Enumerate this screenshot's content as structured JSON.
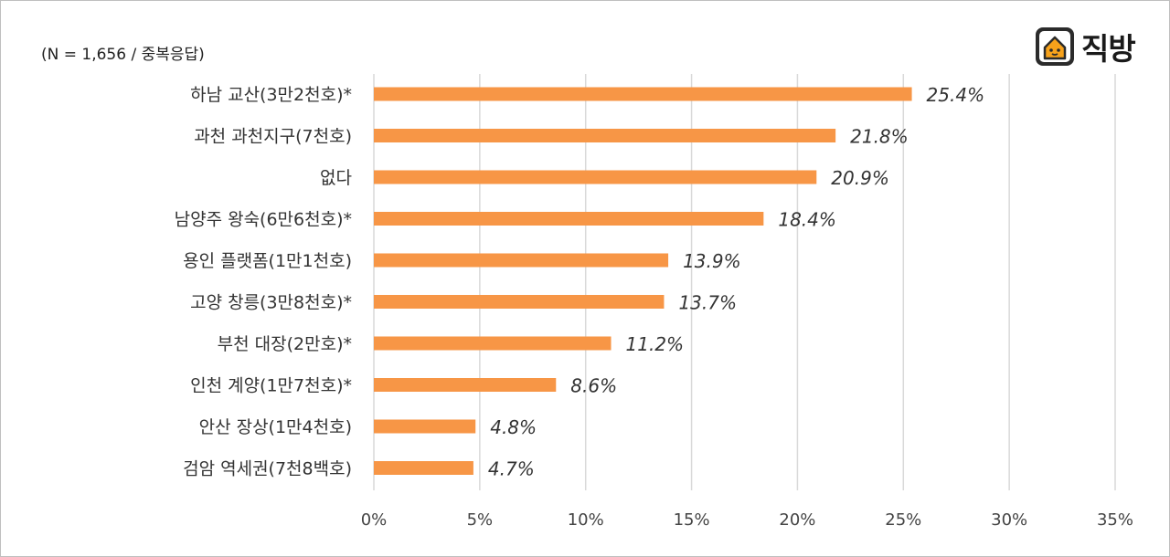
{
  "note": "(N = 1,656 / 중복응답)",
  "logo": {
    "text": "직방",
    "icon": "house-logo-icon"
  },
  "chart_data": {
    "type": "bar",
    "orientation": "horizontal",
    "title": "",
    "xlabel": "",
    "ylabel": "",
    "categories": [
      "하남 교산(3만2천호)*",
      "과천 과천지구(7천호)",
      "없다",
      "남양주 왕숙(6만6천호)*",
      "용인 플랫폼(1만1천호)",
      "고양 창릉(3만8천호)*",
      "부천 대장(2만호)*",
      "인천 계양(1만7천호)*",
      "안산 장상(1만4천호)",
      "검암 역세권(7천8백호)"
    ],
    "values": [
      25.4,
      21.8,
      20.9,
      18.4,
      13.9,
      13.7,
      11.2,
      8.6,
      4.8,
      4.7
    ],
    "value_labels": [
      "25.4%",
      "21.8%",
      "20.9%",
      "18.4%",
      "13.9%",
      "13.7%",
      "11.2%",
      "8.6%",
      "4.8%",
      "4.7%"
    ],
    "xlim": [
      0,
      35
    ],
    "ticks": [
      0,
      5,
      10,
      15,
      20,
      25,
      30,
      35
    ],
    "tick_labels": [
      "0%",
      "5%",
      "10%",
      "15%",
      "20%",
      "25%",
      "30%",
      "35%"
    ],
    "grid": "vertical",
    "legend": "none",
    "bar_color": "#F79646",
    "grid_color": "#d9d9d9"
  }
}
